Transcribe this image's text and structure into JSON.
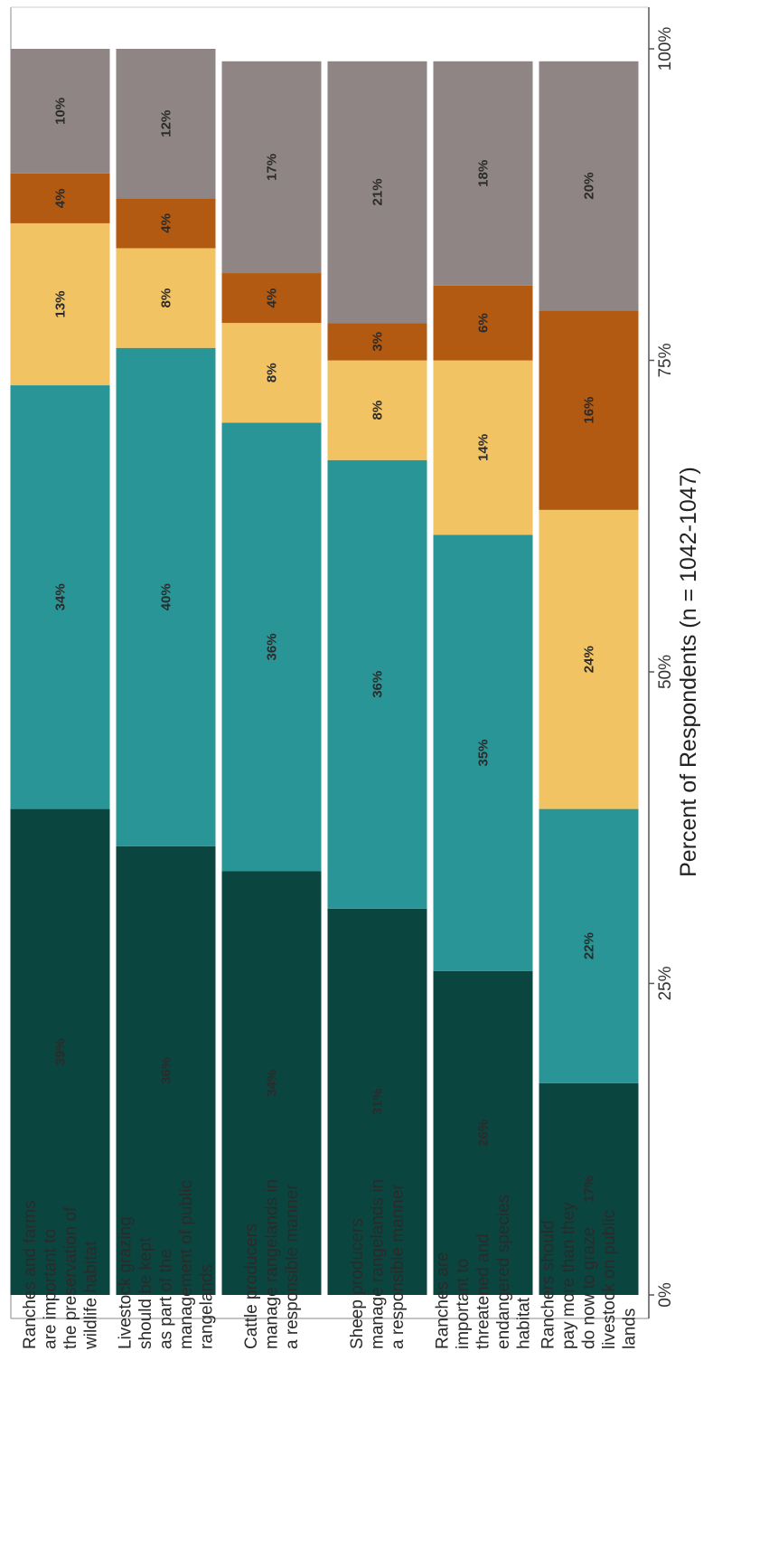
{
  "chart_data": {
    "type": "bar",
    "orientation": "horizontal-stacked",
    "rotation": "figure rotated 90 degrees clockwise",
    "xlabel": "Percent of Respondents (n = 1042-1047)",
    "xlim": [
      0,
      100
    ],
    "x_ticks": [
      "0%",
      "25%",
      "50%",
      "75%",
      "100%"
    ],
    "categories": [
      [
        "Ranches and farms",
        "are important to",
        "the preservation of",
        "wildlife habitat"
      ],
      [
        "Livestock grazing",
        "should be kept",
        "as part of the",
        "management of public",
        "rangelands"
      ],
      [
        "Cattle producers",
        "manage rangelands in",
        "a responsible manner"
      ],
      [
        "Sheep producers",
        "manage rangelands in",
        "a responsible manner"
      ],
      [
        "Ranches are",
        "important to",
        "threatened and",
        "endangered species",
        "habitat"
      ],
      [
        "Ranchers should",
        "pay more than they",
        "do now to graze",
        "livestock on public",
        "lands"
      ]
    ],
    "series": [
      {
        "values": [
          39,
          36,
          34,
          31,
          26,
          17
        ],
        "labels": [
          "39%",
          "36%",
          "34%",
          "31%",
          "26%",
          "17%"
        ]
      },
      {
        "values": [
          34,
          40,
          36,
          36,
          35,
          22
        ],
        "labels": [
          "34%",
          "40%",
          "36%",
          "36%",
          "35%",
          "22%"
        ]
      },
      {
        "values": [
          13,
          8,
          8,
          8,
          14,
          24
        ],
        "labels": [
          "13%",
          "8%",
          "8%",
          "8%",
          "14%",
          "24%"
        ]
      },
      {
        "values": [
          4,
          4,
          4,
          3,
          6,
          16
        ],
        "labels": [
          "4%",
          "4%",
          "4%",
          "3%",
          "6%",
          "16%"
        ]
      },
      {
        "values": [
          10,
          12,
          17,
          21,
          18,
          20
        ],
        "labels": [
          "10%",
          "12%",
          "17%",
          "21%",
          "18%",
          "20%"
        ]
      }
    ],
    "colors": [
      "#0b4540",
      "#2a9597",
      "#f2c363",
      "#b35a12",
      "#8e8584"
    ],
    "grid": false,
    "legend": "none"
  }
}
